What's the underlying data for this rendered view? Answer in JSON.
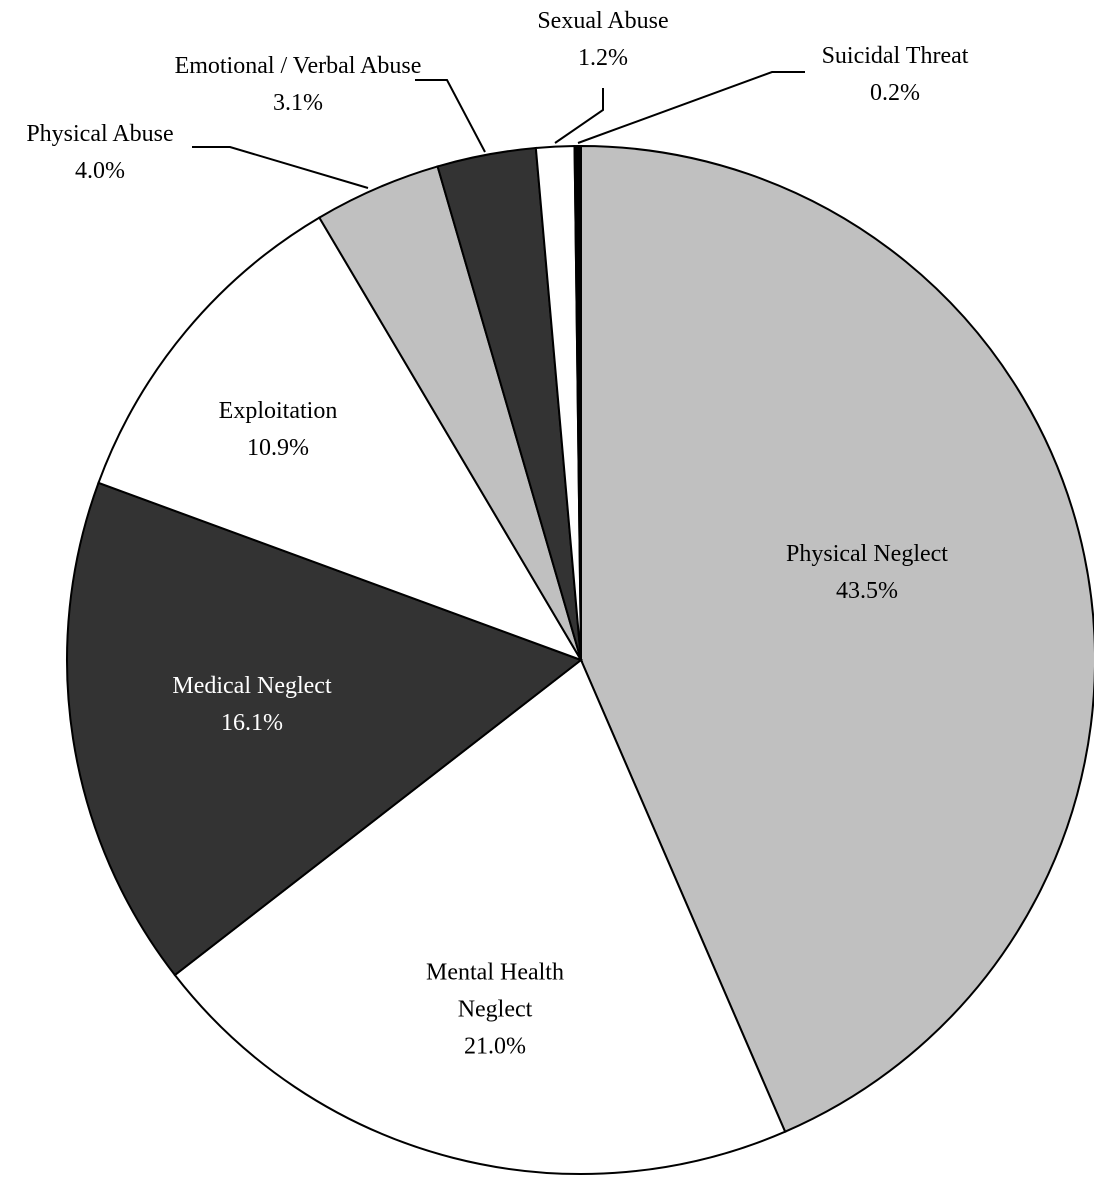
{
  "chart_data": {
    "type": "pie",
    "categories": [
      "Physical Neglect",
      "Mental Health Neglect",
      "Medical Neglect",
      "Exploitation",
      "Physical Abuse",
      "Emotional / Verbal Abuse",
      "Sexual Abuse",
      "Suicidal Threat"
    ],
    "values": [
      43.5,
      21.0,
      16.1,
      10.9,
      4.0,
      3.1,
      1.2,
      0.2
    ],
    "value_labels": [
      "43.5%",
      "21.0%",
      "16.1%",
      "10.9%",
      "4.0%",
      "3.1%",
      "1.2%",
      "0.2%"
    ],
    "colors": [
      "#c0c0c0",
      "#ffffff",
      "#333333",
      "#ffffff",
      "#c0c0c0",
      "#333333",
      "#ffffff",
      "#000000"
    ]
  }
}
